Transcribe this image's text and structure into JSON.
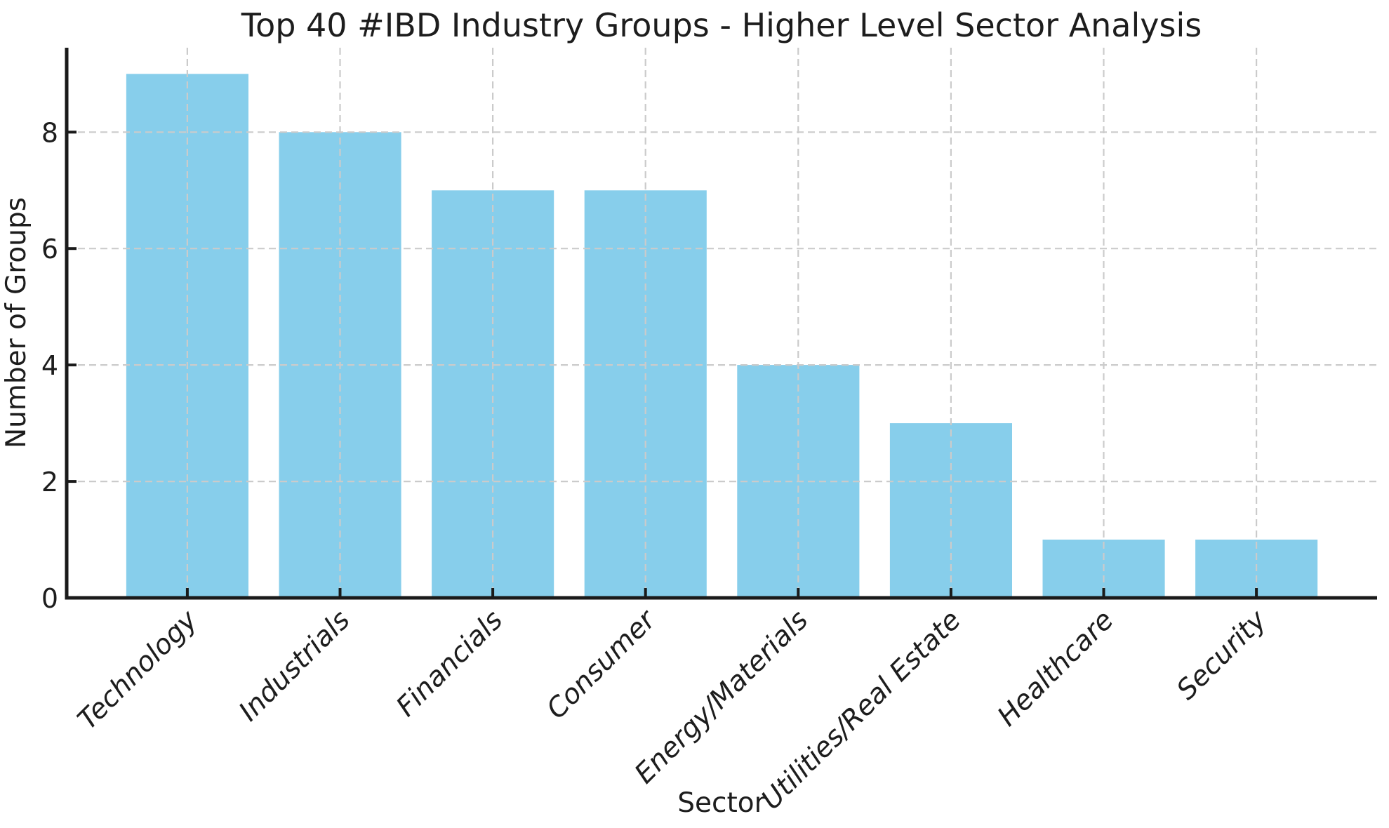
{
  "chart_data": {
    "type": "bar",
    "title": "Top 40 #IBD Industry Groups - Higher Level Sector Analysis",
    "xlabel": "Sector",
    "ylabel": "Number of Groups",
    "categories": [
      "Technology",
      "Industrials",
      "Financials",
      "Consumer",
      "Energy/Materials",
      "Utilities/Real Estate",
      "Healthcare",
      "Security"
    ],
    "values": [
      9,
      8,
      7,
      7,
      4,
      3,
      1,
      1
    ],
    "yticks": [
      0,
      2,
      4,
      6,
      8
    ],
    "ylim": [
      0,
      9.45
    ],
    "bar_color": "#87CEEB",
    "grid": true,
    "grid_color": "#cbcbcb",
    "spine_color": "#1a1a1a",
    "text_color": "#1d1d1d",
    "background_color": "#ffffff",
    "legend": "none",
    "x_tick_rotation_degrees": 45
  }
}
